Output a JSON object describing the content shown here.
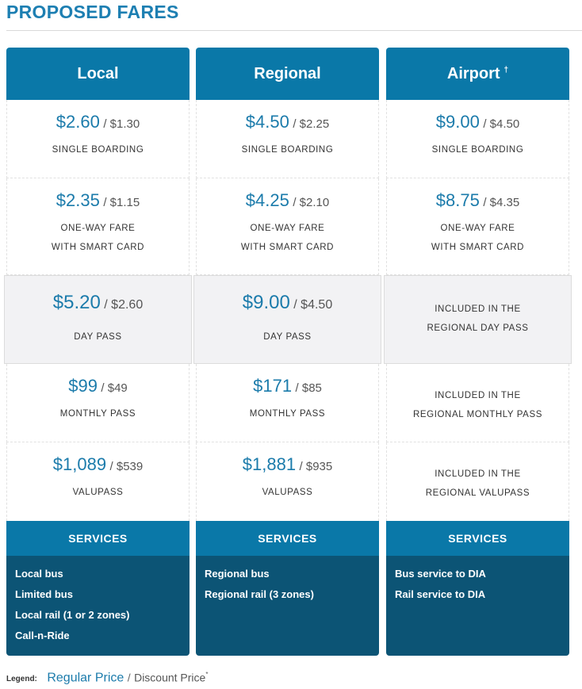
{
  "title": "PROPOSED FARES",
  "plans": [
    {
      "name": "Local",
      "header_mark": "",
      "fares": [
        {
          "regular": "$2.60",
          "discount": "/ $1.30",
          "label1": "SINGLE BOARDING",
          "label2": ""
        },
        {
          "regular": "$2.35",
          "discount": "/ $1.15",
          "label1": "ONE-WAY FARE",
          "label2": "WITH SMART CARD"
        },
        {
          "regular": "$5.20",
          "discount": "/ $2.60",
          "label1": "DAY PASS",
          "label2": ""
        },
        {
          "regular": "$99",
          "discount": "/ $49",
          "label1": "MONTHLY PASS",
          "label2": ""
        },
        {
          "regular": "$1,089",
          "discount": "/ $539",
          "label1": "VALUPASS",
          "label2": ""
        }
      ],
      "services_title": "SERVICES",
      "services": [
        "Local bus",
        "Limited bus",
        "Local rail (1 or 2 zones)",
        "Call-n-Ride"
      ]
    },
    {
      "name": "Regional",
      "header_mark": "",
      "fares": [
        {
          "regular": "$4.50",
          "discount": "/ $2.25",
          "label1": "SINGLE BOARDING",
          "label2": ""
        },
        {
          "regular": "$4.25",
          "discount": "/ $2.10",
          "label1": "ONE-WAY FARE",
          "label2": "WITH SMART CARD"
        },
        {
          "regular": "$9.00",
          "discount": "/ $4.50",
          "label1": "DAY PASS",
          "label2": ""
        },
        {
          "regular": "$171",
          "discount": "/ $85",
          "label1": "MONTHLY PASS",
          "label2": ""
        },
        {
          "regular": "$1,881",
          "discount": "/ $935",
          "label1": "VALUPASS",
          "label2": ""
        }
      ],
      "services_title": "SERVICES",
      "services": [
        "Regional bus",
        "Regional rail (3 zones)"
      ]
    },
    {
      "name": "Airport",
      "header_mark": "†",
      "fares": [
        {
          "regular": "$9.00",
          "discount": "/ $4.50",
          "label1": "SINGLE BOARDING",
          "label2": ""
        },
        {
          "regular": "$8.75",
          "discount": "/ $4.35",
          "label1": "ONE-WAY FARE",
          "label2": "WITH SMART CARD"
        }
      ],
      "included": [
        {
          "line1": "INCLUDED IN THE",
          "line2": "REGIONAL DAY PASS"
        },
        {
          "line1": "INCLUDED IN THE",
          "line2": "REGIONAL MONTHLY PASS"
        },
        {
          "line1": "INCLUDED IN THE",
          "line2": "REGIONAL VALUPASS"
        }
      ],
      "services_title": "SERVICES",
      "services": [
        "Bus service to DIA",
        "Rail service to DIA"
      ]
    }
  ],
  "legend": {
    "label": "Legend:",
    "regular": "Regular Price",
    "separator": "/",
    "discount": "Discount Price",
    "mark": "*"
  },
  "colors": {
    "accent": "#0a78a8",
    "services_dark": "#0c5475",
    "price_blue": "#1b7bab",
    "highlight_bg": "#f2f2f4"
  }
}
